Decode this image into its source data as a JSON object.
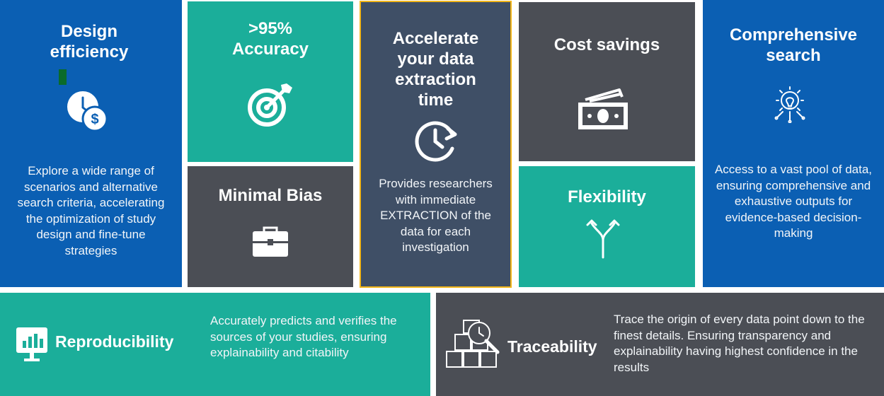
{
  "tiles": {
    "design": {
      "title": "Design efficiency",
      "icon": "clock-dollar-icon",
      "desc": "Explore a wide range of scenarios and alternative search criteria, accelerating the optimization of study design and fine-tune strategies"
    },
    "accuracy": {
      "title": ">95% Accuracy",
      "icon": "target-icon"
    },
    "minimal_bias": {
      "title": "Minimal Bias",
      "icon": "briefcase-icon"
    },
    "accelerate": {
      "title": "Accelerate your data extraction time",
      "icon": "clock-refresh-icon",
      "desc": "Provides researchers with immediate EXTRACTION of the data for each investigation"
    },
    "cost": {
      "title": "Cost savings",
      "icon": "money-icon"
    },
    "flexibility": {
      "title": "Flexibility",
      "icon": "split-arrows-icon"
    },
    "comprehensive": {
      "title": "Comprehensive search",
      "icon": "gear-bulb-icon",
      "desc": "Access to a vast pool of data, ensuring comprehensive and exhaustive outputs for evidence-based decision-making"
    },
    "reproducibility": {
      "title": "Reproducibility",
      "icon": "monitor-chart-icon",
      "desc": "Accurately predicts and verifies the sources of your studies, ensuring explainability and citability"
    },
    "traceability": {
      "title": "Traceability",
      "icon": "boxes-magnifier-icon",
      "desc": "Trace the origin of every data point down to the finest details. Ensuring transparency and explainability having highest confidence in the results"
    }
  },
  "colors": {
    "blue": "#0b5fb3",
    "teal": "#1bae9a",
    "gray": "#4b4e55",
    "slate": "#3f4f66",
    "highlight_border": "#f2b619"
  }
}
